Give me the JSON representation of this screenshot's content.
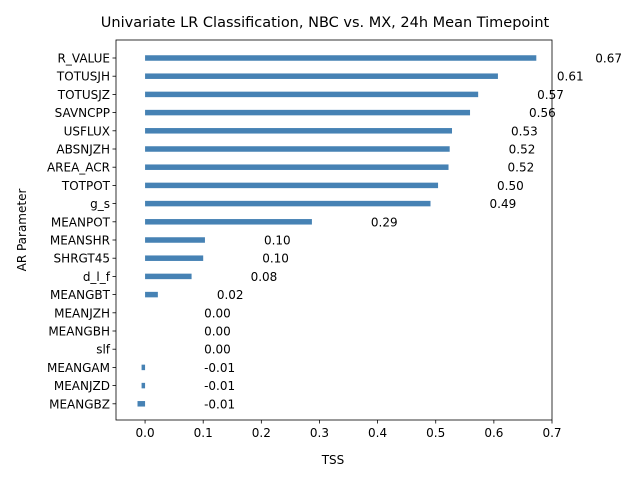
{
  "chart_data": {
    "type": "bar",
    "orientation": "horizontal",
    "title": "Univariate LR Classification, NBC vs. MX, 24h Mean Timepoint",
    "xlabel": "TSS",
    "ylabel": "AR Parameter",
    "xlim": [
      -0.05,
      0.7
    ],
    "xticks": [
      0.0,
      0.1,
      0.2,
      0.3,
      0.4,
      0.5,
      0.6,
      0.7
    ],
    "xtick_labels": [
      "0.0",
      "0.1",
      "0.2",
      "0.3",
      "0.4",
      "0.5",
      "0.6",
      "0.7"
    ],
    "categories": [
      "R_VALUE",
      "TOTUSJH",
      "TOTUSJZ",
      "SAVNCPP",
      "USFLUX",
      "ABSNJZH",
      "AREA_ACR",
      "TOTPOT",
      "g_s",
      "MEANPOT",
      "MEANSHR",
      "SHRGT45",
      "d_l_f",
      "MEANGBT",
      "MEANJZH",
      "MEANGBH",
      "slf",
      "MEANGAM",
      "MEANJZD",
      "MEANGBZ"
    ],
    "values": [
      0.673,
      0.607,
      0.573,
      0.559,
      0.528,
      0.524,
      0.522,
      0.504,
      0.491,
      0.287,
      0.103,
      0.1,
      0.08,
      0.022,
      0.0,
      0.0,
      0.0,
      -0.006,
      -0.006,
      -0.013
    ],
    "value_labels": [
      "0.67",
      "0.61",
      "0.57",
      "0.56",
      "0.53",
      "0.52",
      "0.52",
      "0.50",
      "0.49",
      "0.29",
      "0.10",
      "0.10",
      "0.08",
      "0.02",
      "0.00",
      "0.00",
      "0.00",
      "-0.01",
      "-0.01",
      "-0.01"
    ],
    "bar_color": "#4682b4",
    "grid": false,
    "legend": "none"
  }
}
